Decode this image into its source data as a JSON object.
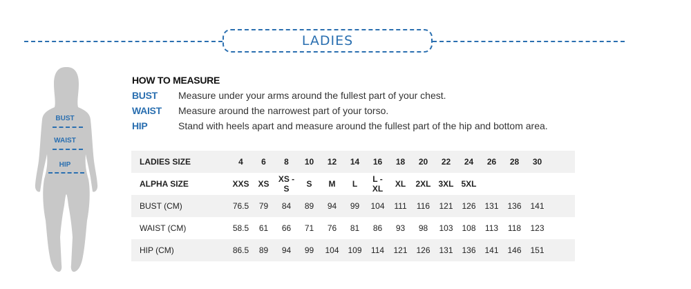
{
  "title": "LADIES",
  "figure_labels": {
    "bust": "BUST",
    "waist": "WAIST",
    "hip": "HIP"
  },
  "how_to_measure": {
    "heading": "HOW TO MEASURE",
    "items": [
      {
        "key": "BUST",
        "text": "Measure under your arms around the fullest part of your chest."
      },
      {
        "key": "WAIST",
        "text": "Measure around the narrowest part of your torso."
      },
      {
        "key": "HIP",
        "text": "Stand with heels apart and measure around the fullest part of the hip and bottom area."
      }
    ]
  },
  "table": {
    "rows": [
      {
        "label": "LADIES SIZE",
        "bold": true,
        "cells": [
          "4",
          "6",
          "8",
          "10",
          "12",
          "14",
          "16",
          "18",
          "20",
          "22",
          "24",
          "26",
          "28",
          "30"
        ]
      },
      {
        "label": "ALPHA SIZE",
        "bold": true,
        "cells": [
          "XXS",
          "XS",
          "XS - S",
          "S",
          "M",
          "L",
          "L - XL",
          "XL",
          "2XL",
          "3XL",
          "5XL",
          "",
          "",
          ""
        ]
      },
      {
        "label": "BUST (CM)",
        "bold": false,
        "cells": [
          "76.5",
          "79",
          "84",
          "89",
          "94",
          "99",
          "104",
          "111",
          "116",
          "121",
          "126",
          "131",
          "136",
          "141"
        ]
      },
      {
        "label": "WAIST (CM)",
        "bold": false,
        "cells": [
          "58.5",
          "61",
          "66",
          "71",
          "76",
          "81",
          "86",
          "93",
          "98",
          "103",
          "108",
          "113",
          "118",
          "123"
        ]
      },
      {
        "label": "HIP (CM)",
        "bold": false,
        "cells": [
          "86.5",
          "89",
          "94",
          "99",
          "104",
          "109",
          "114",
          "121",
          "126",
          "131",
          "136",
          "141",
          "146",
          "151"
        ]
      }
    ]
  },
  "colors": {
    "accent": "#2a6fb0",
    "row_shade": "#f1f1f1",
    "silhouette": "#c8c8c8"
  }
}
